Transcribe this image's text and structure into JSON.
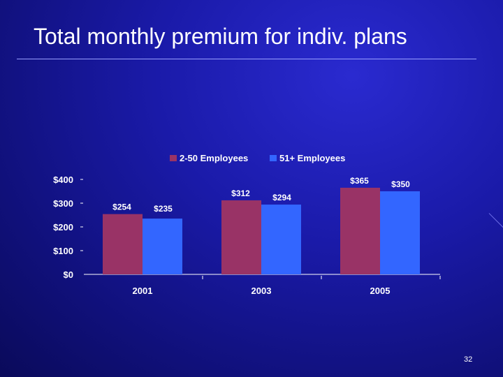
{
  "slide": {
    "title": "Total monthly premium for indiv. plans",
    "page_number": "32"
  },
  "colors": {
    "series_1": "#993366",
    "series_2": "#3366ff"
  },
  "chart_data": {
    "type": "bar",
    "title": "",
    "xlabel": "",
    "ylabel": "",
    "categories": [
      "2001",
      "2003",
      "2005"
    ],
    "series": [
      {
        "name": "2-50 Employees",
        "values": [
          254,
          312,
          365
        ],
        "labels": [
          "$254",
          "$312",
          "$365"
        ]
      },
      {
        "name": "51+ Employees",
        "values": [
          235,
          294,
          350
        ],
        "labels": [
          "$235",
          "$294",
          "$350"
        ]
      }
    ],
    "ylim": [
      0,
      400
    ],
    "yticks": [
      0,
      100,
      200,
      300,
      400
    ],
    "ytick_labels": [
      "$0",
      "$100",
      "$200",
      "$300",
      "$400"
    ],
    "legend_position": "top",
    "grid": false
  }
}
